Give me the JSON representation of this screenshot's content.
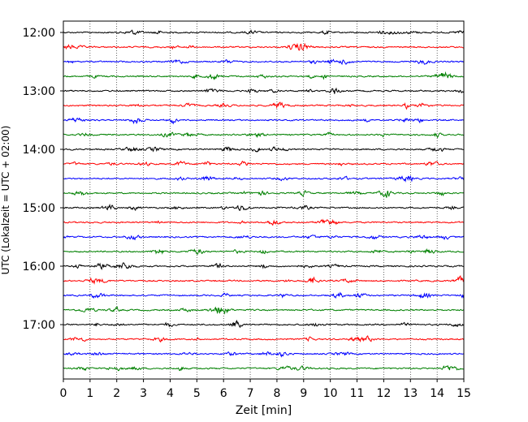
{
  "chart_data": {
    "type": "line",
    "title": "",
    "xlabel": "Zeit  [min]",
    "ylabel": "UTC (Lokalzeit = UTC + 02:00)",
    "xlim": [
      0,
      15
    ],
    "x_ticks": [
      0,
      1,
      2,
      3,
      4,
      5,
      6,
      7,
      8,
      9,
      10,
      11,
      12,
      13,
      14,
      15
    ],
    "y_tick_labels": [
      "12:00",
      "13:00",
      "14:00",
      "15:00",
      "16:00",
      "17:00"
    ],
    "trace_start_times": [
      "12:00",
      "12:15",
      "12:30",
      "12:45",
      "13:00",
      "13:15",
      "13:30",
      "13:45",
      "14:00",
      "14:15",
      "14:30",
      "14:45",
      "15:00",
      "15:15",
      "15:30",
      "15:45",
      "16:00",
      "16:15",
      "16:30",
      "16:45",
      "17:00",
      "17:15",
      "17:30",
      "17:45"
    ],
    "trace_colors": [
      "#000000",
      "#ff0000",
      "#0000ff",
      "#008000"
    ],
    "grid": {
      "vertical": "dotted",
      "horizontal": false
    },
    "series_description": "24 seismogram traces, 15 minutes each, stacked from top to bottom in time order"
  }
}
